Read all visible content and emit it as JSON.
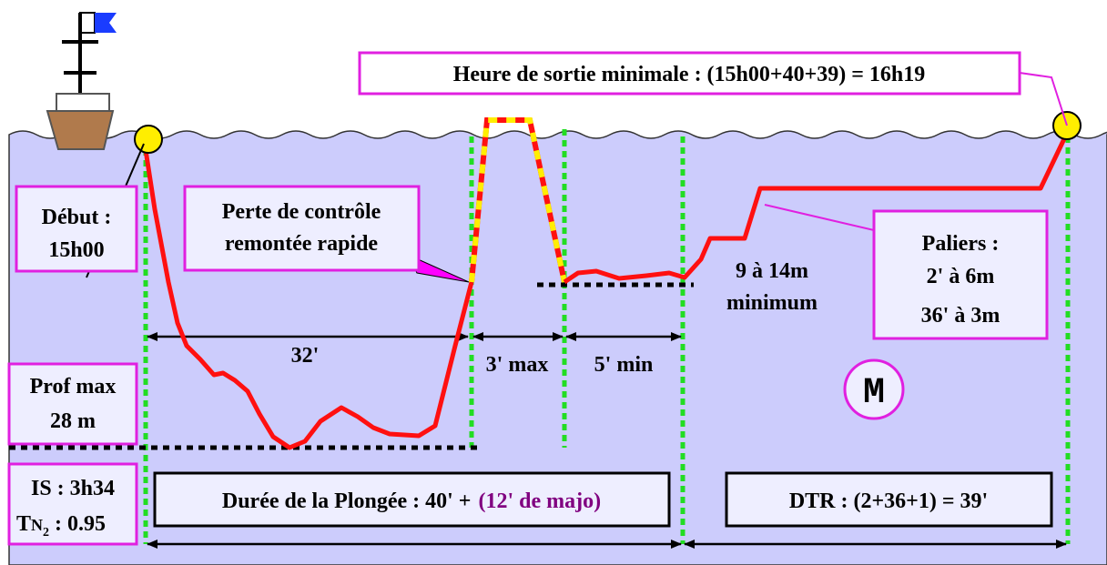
{
  "exit_time": "Heure de sortie minimale : (15h00+40+39) = 16h19",
  "start": {
    "label": "Début :",
    "time": "15h00"
  },
  "loss": {
    "line1": "Perte de contrôle",
    "line2": "remontée rapide"
  },
  "durations": {
    "bottom": "32'",
    "ascent": "3' max",
    "surface": "5' min"
  },
  "reimmersion": {
    "line1": "9 à 14m",
    "line2": "minimum"
  },
  "stops": {
    "title": "Paliers :",
    "stop1": "2' à 6m",
    "stop2": "36' à 3m"
  },
  "table_letter": "M",
  "max_depth": {
    "label": "Prof max",
    "value": "28 m"
  },
  "interval": {
    "is": "IS : 3h34",
    "tn2_t": "T",
    "tn2_n": "N",
    "tn2_sub": "2",
    "tn2_value": ": 0.95"
  },
  "dive_time": {
    "base": "Durée de la Plongée : 40' +",
    "majoration": "(12' de majo)"
  },
  "dtr": "DTR : (2+36+1) = 39'"
}
